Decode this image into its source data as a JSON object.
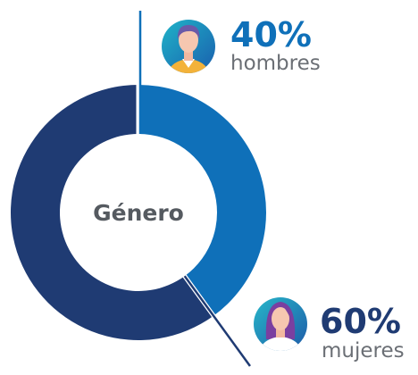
{
  "chart_data": {
    "type": "donut",
    "title": "Género",
    "categories": [
      "hombres",
      "mujeres"
    ],
    "values": [
      40,
      60
    ],
    "value_labels": [
      "40%",
      "60%"
    ],
    "colors": [
      "#0f70b9",
      "#1f3b73"
    ]
  }
}
